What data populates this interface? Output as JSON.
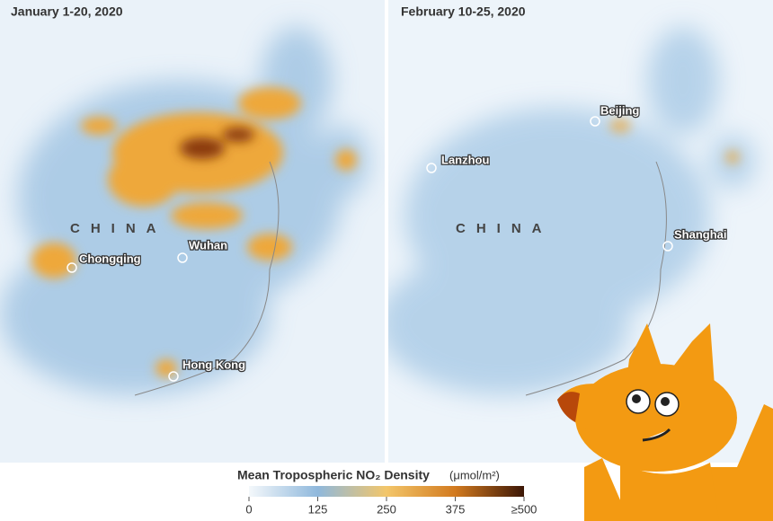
{
  "panels": [
    {
      "title": "January 1-20, 2020",
      "country": "CHINA",
      "cities": [
        "Chongqing",
        "Wuhan",
        "Hong Kong"
      ]
    },
    {
      "title": "February 10-25, 2020",
      "country": "CHINA",
      "cities": [
        "Beijing",
        "Lanzhou",
        "Shanghai"
      ]
    }
  ],
  "legend": {
    "title": "Mean Tropospheric NO₂ Density",
    "unit": "(μmol/m²)",
    "range": [
      0,
      500
    ],
    "ticks": [
      0,
      125,
      250,
      375,
      {
        "value": 500,
        "label": "≥500"
      }
    ]
  }
}
